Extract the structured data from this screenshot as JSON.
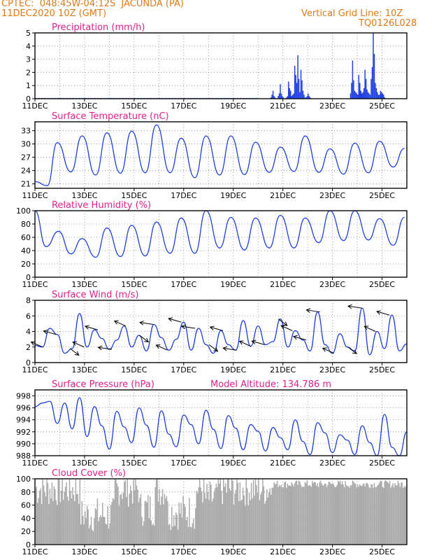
{
  "header": {
    "line1": "CPTEC:  048:45W-04:12S  JACUNDA (PA)",
    "line2_left": "11DEC2020 10Z (GMT)",
    "line2_right": "Vertical Grid Line: 10Z",
    "line3_right": "TQ0126L028"
  },
  "colors": {
    "header": "#e07a1a",
    "title": "#e0208a",
    "series": "#1f3fe0",
    "cloud": "#aaaaaa",
    "arrow": "#000000",
    "grid": "#888888"
  },
  "x_tick_labels": [
    "11DEC",
    "13DEC",
    "15DEC",
    "17DEC",
    "19DEC",
    "21DEC",
    "23DEC",
    "25DEC"
  ],
  "chart_data": [
    {
      "type": "bar",
      "title": "Precipitation (mm/h)",
      "ylim": [
        0,
        5
      ],
      "yticks": [
        0,
        1,
        2,
        3,
        4,
        5
      ],
      "x_start_day": 0,
      "x_step_days": 0.041667,
      "values_hourly_from_day9_5": [
        0.1,
        0.3,
        0.6,
        0.2,
        0.1,
        0,
        0,
        0.2,
        0.4,
        1.1,
        0.4,
        0.2,
        0.1,
        0,
        0,
        0.1,
        0.2,
        1.3,
        0.8,
        0.6,
        0.2,
        0.3,
        0.4,
        2.5,
        1.8,
        1.2,
        3.3,
        1.5,
        0.5,
        2.2,
        1.4,
        0.6,
        0.3,
        0.1,
        0.1,
        0.2,
        0.4,
        0.2,
        0.1,
        0,
        0,
        0,
        0,
        0,
        0,
        0,
        0,
        0,
        0,
        0,
        0,
        0,
        0,
        0,
        0,
        0,
        0,
        0,
        0,
        0,
        0,
        0,
        0,
        0,
        0,
        0,
        0,
        0,
        0,
        0,
        0,
        0,
        0,
        0,
        0,
        0,
        0,
        0.4,
        1.2,
        2.9,
        1.4,
        0.6,
        0.5,
        0.4,
        0.3,
        1.8,
        1.2,
        0.6,
        0.4,
        0.5,
        0.8,
        2.2,
        1.5,
        0.7,
        0.5,
        0.4,
        0.3,
        1.5,
        2.4,
        5.0,
        3.4,
        1.2,
        0.8,
        0.5,
        0.3,
        0.3,
        0.6,
        0.5,
        0.4,
        0.3,
        0.1,
        0,
        0,
        0,
        0,
        0,
        0,
        0,
        0,
        0,
        0,
        0,
        0,
        0,
        0,
        0,
        0,
        0,
        0,
        0,
        0,
        0,
        0,
        0,
        0.1,
        0.2,
        0.5,
        2.4,
        2.9,
        1.3,
        1.1,
        0.7,
        0.9,
        0.4
      ],
      "note_small_values": "near-zero drizzle from 11DEC to 19DEC"
    },
    {
      "type": "line",
      "title": "Surface Temperature (nC)",
      "ylim": [
        20,
        35
      ],
      "yticks": [
        21,
        24,
        27,
        30,
        33
      ],
      "x": [
        0,
        0.5,
        0.9,
        1.45,
        1.9,
        2.45,
        2.9,
        3.45,
        3.9,
        4.45,
        4.9,
        5.45,
        5.9,
        6.45,
        6.9,
        7.45,
        7.9,
        8.45,
        8.9,
        9.45,
        9.9,
        10.45,
        10.9,
        11.45,
        11.9,
        12.45,
        12.9,
        13.45,
        13.9,
        14.45,
        14.9
      ],
      "values": [
        21.5,
        20.6,
        30.3,
        23.7,
        31.8,
        23.0,
        32.5,
        23.4,
        32.9,
        23.5,
        34.3,
        23.5,
        31.3,
        22.4,
        31.8,
        23.0,
        31.8,
        23.1,
        30.4,
        23.6,
        29.3,
        23.8,
        31.8,
        23.6,
        28.9,
        23.2,
        30.2,
        23.5,
        30.6,
        24.8,
        29.0
      ]
    },
    {
      "type": "line",
      "title": "Relative Humidity (%)",
      "ylim": [
        0,
        100
      ],
      "yticks": [
        0,
        20,
        40,
        60,
        80,
        100
      ],
      "x": [
        0,
        0.45,
        0.95,
        1.45,
        1.9,
        2.45,
        2.9,
        3.45,
        3.9,
        4.45,
        4.9,
        5.45,
        5.9,
        6.45,
        6.9,
        7.45,
        7.9,
        8.45,
        8.9,
        9.45,
        9.9,
        10.45,
        10.9,
        11.45,
        11.9,
        12.45,
        12.9,
        13.45,
        13.9,
        14.45,
        14.9
      ],
      "values": [
        100,
        46,
        69,
        35,
        58,
        30,
        74,
        31,
        78,
        32,
        83,
        36,
        89,
        36,
        100,
        44,
        90,
        41,
        89,
        44,
        93,
        44,
        89,
        52,
        100,
        55,
        100,
        56,
        88,
        48,
        90
      ]
    },
    {
      "type": "line",
      "title": "Surface Wind (m/s)",
      "ylim": [
        0,
        8
      ],
      "yticks": [
        0,
        2,
        4,
        6,
        8
      ],
      "x": [
        0,
        0.3,
        0.6,
        0.9,
        1.2,
        1.5,
        1.8,
        2.1,
        2.4,
        2.7,
        3.0,
        3.3,
        3.6,
        3.9,
        4.2,
        4.5,
        4.8,
        5.1,
        5.4,
        5.7,
        6.0,
        6.3,
        6.6,
        6.9,
        7.2,
        7.5,
        7.8,
        8.1,
        8.4,
        8.7,
        9.0,
        9.3,
        9.6,
        9.9,
        10.2,
        10.5,
        10.8,
        11.1,
        11.4,
        11.7,
        12.0,
        12.3,
        12.6,
        12.9,
        13.2,
        13.5,
        13.8,
        14.1,
        14.4,
        14.7,
        15.0
      ],
      "values": [
        2.2,
        2.0,
        4.4,
        3.6,
        1.2,
        1.8,
        6.3,
        2.0,
        4.2,
        3.1,
        1.7,
        2.9,
        4.7,
        2.0,
        3.5,
        1.5,
        4.9,
        3.2,
        1.6,
        3.0,
        5.2,
        1.6,
        4.4,
        2.3,
        1.2,
        4.1,
        2.3,
        1.6,
        5.4,
        2.1,
        4.7,
        2.3,
        2.7,
        5.6,
        2.0,
        4.1,
        2.9,
        1.5,
        6.5,
        2.3,
        1.2,
        3.7,
        2.0,
        1.5,
        7.0,
        1.0,
        4.0,
        1.8,
        6.1,
        1.5,
        2.4
      ],
      "arrows_note": "wind direction arrows shown along the series"
    },
    {
      "type": "line",
      "title": "Surface Pressure (hPa)",
      "annotation": "Model Altitude: 134.786  m",
      "ylim": [
        988,
        999
      ],
      "yticks": [
        988,
        990,
        992,
        994,
        996,
        998
      ],
      "x": [
        0,
        0.3,
        0.6,
        0.9,
        1.2,
        1.5,
        1.8,
        2.1,
        2.4,
        2.7,
        3.0,
        3.3,
        3.6,
        3.9,
        4.2,
        4.5,
        4.8,
        5.1,
        5.4,
        5.7,
        6.0,
        6.3,
        6.6,
        6.9,
        7.2,
        7.5,
        7.8,
        8.1,
        8.4,
        8.7,
        9.0,
        9.3,
        9.6,
        9.9,
        10.2,
        10.5,
        10.8,
        11.1,
        11.4,
        11.7,
        12.0,
        12.3,
        12.6,
        12.9,
        13.2,
        13.5,
        13.8,
        14.1,
        14.4,
        14.7,
        15.0
      ],
      "values": [
        996.2,
        996.8,
        997.1,
        993.4,
        996.8,
        992.5,
        997.7,
        991.2,
        996.2,
        993.0,
        989.1,
        995.4,
        992.8,
        990.2,
        996.0,
        993.1,
        989.4,
        995.5,
        991.6,
        989.5,
        994.8,
        993.2,
        990.0,
        995.6,
        992.4,
        989.2,
        994.7,
        992.6,
        989.0,
        993.2,
        992.1,
        988.8,
        992.7,
        991.0,
        989.0,
        994.0,
        990.4,
        988.2,
        993.5,
        991.8,
        988.5,
        991.5,
        990.6,
        988.2,
        993.0,
        990.2,
        988.0,
        994.9,
        989.4,
        988.0,
        992.0
      ]
    },
    {
      "type": "bar",
      "title": "Cloud Cover (%)",
      "ylim": [
        0,
        100
      ],
      "yticks": [
        0,
        20,
        40,
        60,
        80,
        100
      ],
      "note": "hourly cloud cover bars, mostly 60-100%, dips near 12DEC-13DEC and 15DEC-17DEC"
    }
  ]
}
